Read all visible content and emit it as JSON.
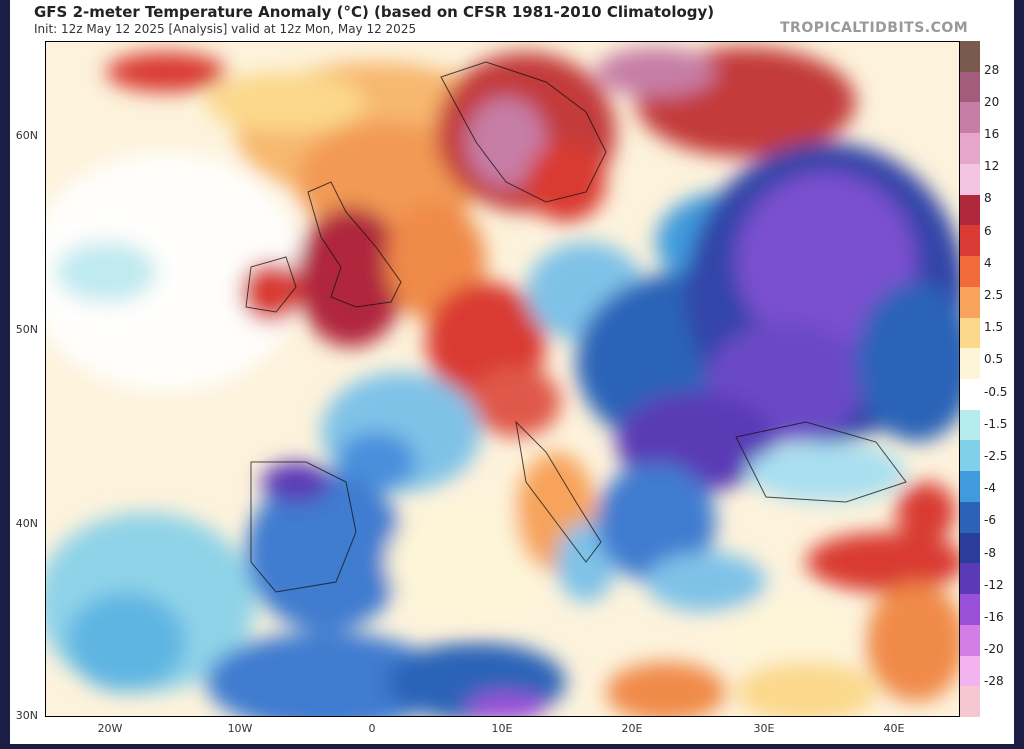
{
  "header": {
    "title": "GFS 2-meter Temperature Anomaly (°C) (based on CFSR 1981-2010 Climatology)",
    "subtitle": "Init: 12z May 12 2025   [Analysis]   valid at 12z Mon, May 12 2025",
    "brand": "TROPICALTIDBITS.COM"
  },
  "map": {
    "latitude_labels": [
      "60N",
      "50N",
      "40N",
      "30N"
    ],
    "longitude_labels": [
      "20W",
      "10W",
      "0",
      "10E",
      "20E",
      "30E",
      "40E"
    ]
  },
  "legend": {
    "labels": [
      "28",
      "20",
      "16",
      "12",
      "8",
      "6",
      "4",
      "2.5",
      "1.5",
      "0.5",
      "-0.5",
      "-1.5",
      "-2.5",
      "-4",
      "-6",
      "-8",
      "-12",
      "-16",
      "-20",
      "-28"
    ],
    "colors": [
      "#7b5a4e",
      "#a35c7c",
      "#c67ea6",
      "#e6a6cc",
      "#f2c4e0",
      "#b0283c",
      "#d93a33",
      "#f16a3a",
      "#f7a35b",
      "#fbd88b",
      "#fdf5d7",
      "#ffffff",
      "#b7ecef",
      "#7fd0e8",
      "#3f9bdc",
      "#2c63b8",
      "#2a3d9a",
      "#5a3ab6",
      "#9a4fd8",
      "#d27ee6",
      "#f2b3ef",
      "#f4c7d1"
    ]
  },
  "colors": {
    "frame": "#1c1d44",
    "sea_neutral": "#fdf3dc",
    "warm": "#f08a4a",
    "hot": "#c33a3a",
    "cool": "#4a8fdc",
    "cold": "#3344a8",
    "very_cold": "#7a4fd0"
  }
}
